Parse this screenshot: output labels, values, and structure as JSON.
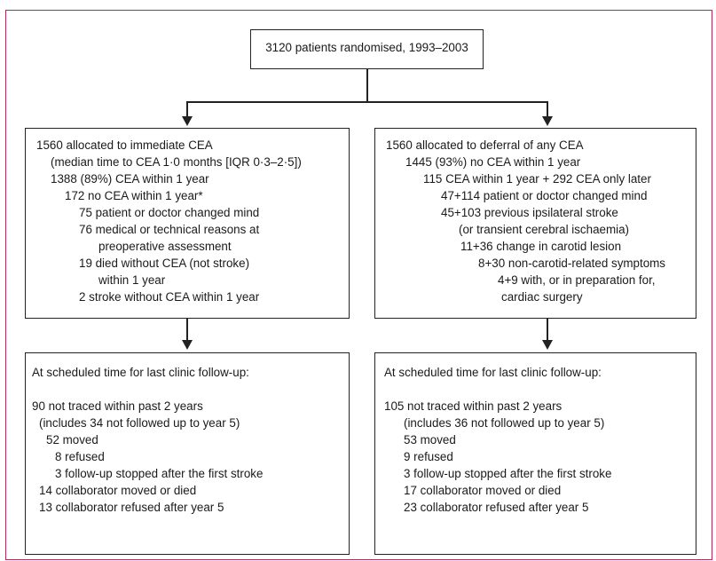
{
  "top_box": {
    "text": "3120 patients randomised, 1993–2003"
  },
  "left_allocation": {
    "lines": [
      {
        "text": "1560 allocated to immediate CEA",
        "indent": 0
      },
      {
        "text": "(median time to CEA 1·0 months [IQR 0·3–2·5])",
        "indent": 1
      },
      {
        "text": "1388 (89%) CEA within 1 year",
        "indent": 1
      },
      {
        "text": "172 no CEA within 1 year*",
        "indent": 2
      },
      {
        "text": "75 patient or doctor changed mind",
        "indent": 3
      },
      {
        "text": "76 medical or technical reasons at",
        "indent": 3
      },
      {
        "text": "preoperative assessment",
        "indent": 4
      },
      {
        "text": "19 died without CEA (not stroke)",
        "indent": 3
      },
      {
        "text": "within 1 year",
        "indent": 4
      },
      {
        "text": "2 stroke without CEA within 1 year",
        "indent": 3
      }
    ]
  },
  "right_allocation": {
    "lines": [
      {
        "text": "1560 allocated to deferral of any CEA",
        "indent": 0
      },
      {
        "text": "1445 (93%) no CEA within 1 year",
        "indent": 1
      },
      {
        "text": "115 CEA within 1 year + 292 CEA only later",
        "indent": 2
      },
      {
        "text": "47+114 patient or doctor changed mind",
        "indent": 3
      },
      {
        "text": "45+103 previous ipsilateral stroke",
        "indent": 3
      },
      {
        "text": "(or transient cerebral ischaemia)",
        "indent": 4
      },
      {
        "text": "11+36 change in carotid lesion",
        "indent": 5
      },
      {
        "text": "8+30 non-carotid-related symptoms",
        "indent": 6
      },
      {
        "text": "4+9 with, or in preparation for,",
        "indent": 7
      },
      {
        "text": "cardiac surgery",
        "indent": 8
      }
    ]
  },
  "left_followup": {
    "lines": [
      {
        "text": "At scheduled time for last clinic follow-up:",
        "indent": 0
      },
      {
        "text": "",
        "indent": 0
      },
      {
        "text": "90 not traced within past 2 years",
        "indent": 0
      },
      {
        "text": "(includes 34 not followed up to year 5)",
        "indent": 1
      },
      {
        "text": "52 moved",
        "indent": 2
      },
      {
        "text": "8 refused",
        "indent": 3
      },
      {
        "text": "3 follow-up stopped after the first stroke",
        "indent": 3
      },
      {
        "text": "14 collaborator moved or died",
        "indent": 1
      },
      {
        "text": "13 collaborator refused after year 5",
        "indent": 1
      }
    ]
  },
  "right_followup": {
    "lines": [
      {
        "text": "At scheduled time for last clinic follow-up:",
        "indent": 0
      },
      {
        "text": "",
        "indent": 0
      },
      {
        "text": "105 not traced within past 2 years",
        "indent": 0
      },
      {
        "text": "(includes 36 not followed up to year 5)",
        "indent": 1
      },
      {
        "text": "53 moved",
        "indent": 1
      },
      {
        "text": "9 refused",
        "indent": 1
      },
      {
        "text": "3 follow-up stopped after the first stroke",
        "indent": 1
      },
      {
        "text": "17 collaborator moved or died",
        "indent": 1
      },
      {
        "text": "23 collaborator refused after year 5",
        "indent": 1
      }
    ]
  }
}
